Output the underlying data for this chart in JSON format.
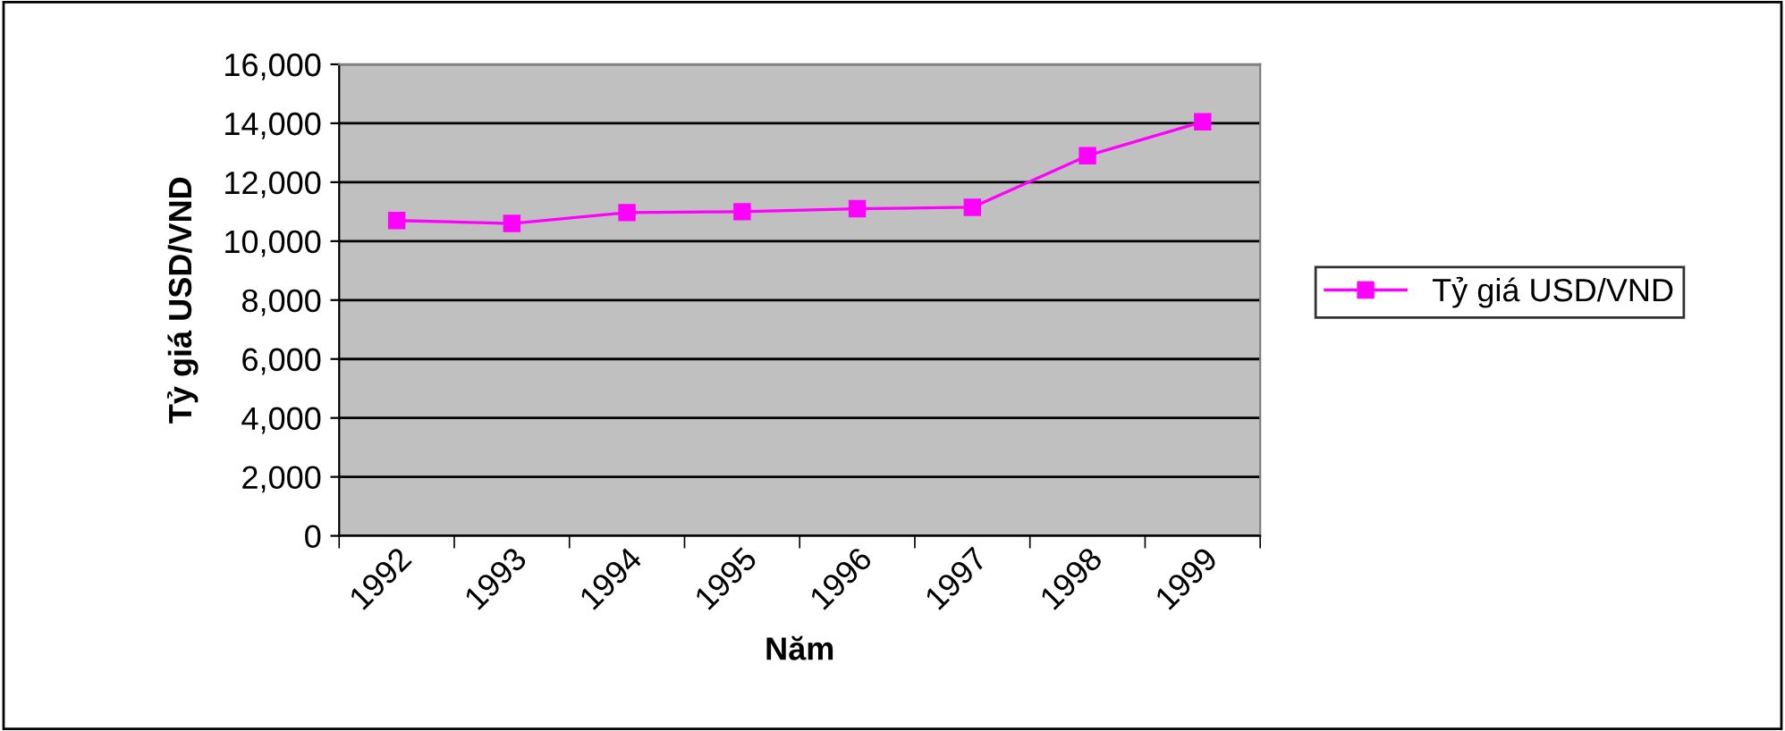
{
  "chart_data": {
    "type": "line",
    "xlabel": "Năm",
    "ylabel": "Tỷ giá USD/VND",
    "categories": [
      "1992",
      "1993",
      "1994",
      "1995",
      "1996",
      "1997",
      "1998",
      "1999"
    ],
    "series": [
      {
        "name": "Tỷ giá USD/VND",
        "color": "#ff00ff",
        "values": [
          10700,
          10600,
          10970,
          11000,
          11100,
          11150,
          12900,
          14050
        ]
      }
    ],
    "ylim": [
      0,
      16000
    ],
    "yticks": [
      {
        "value": 0,
        "label": "0"
      },
      {
        "value": 2000,
        "label": "2,000"
      },
      {
        "value": 4000,
        "label": "4,000"
      },
      {
        "value": 6000,
        "label": "6,000"
      },
      {
        "value": 8000,
        "label": "8,000"
      },
      {
        "value": 10000,
        "label": "10,000"
      },
      {
        "value": 12000,
        "label": "12,000"
      },
      {
        "value": 14000,
        "label": "14,000"
      },
      {
        "value": 16000,
        "label": "16,000"
      }
    ],
    "grid": "y",
    "legend": "right",
    "marker": "square",
    "line_style": "solid"
  }
}
